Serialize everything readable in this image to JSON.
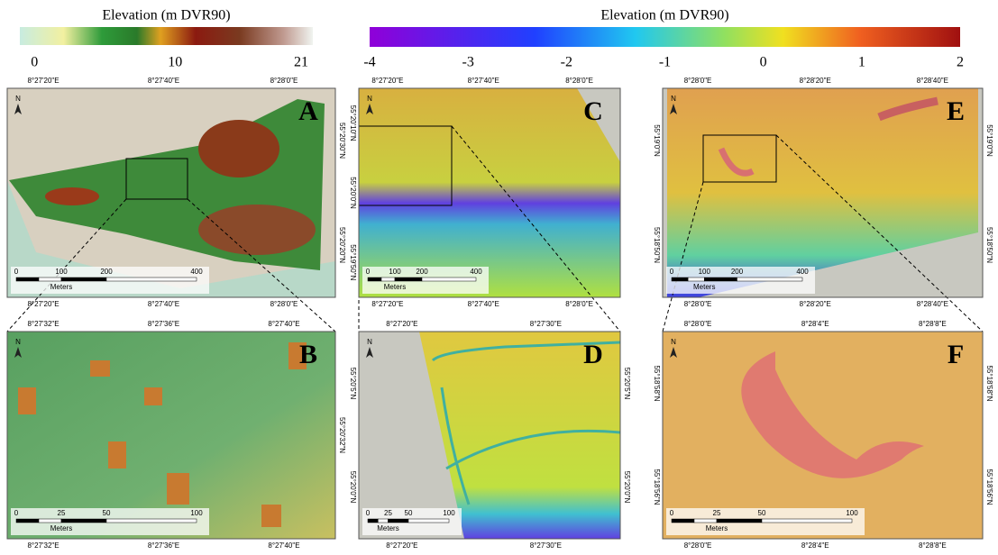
{
  "colorbars": [
    {
      "title": "Elevation (m DVR90)",
      "ticks": [
        "0",
        "10",
        "21"
      ]
    },
    {
      "title": "Elevation (m DVR90)",
      "ticks": [
        "-4",
        "-3",
        "-2",
        "-1",
        "0",
        "1",
        "2"
      ]
    }
  ],
  "panels": [
    {
      "letter": "A",
      "north": "N",
      "top_labels": [
        "8°27'20\"E",
        "8°27'40\"E",
        "8°28'0\"E"
      ],
      "bottom_labels": [
        "8°27'20\"E",
        "8°27'40\"E",
        "8°28'0\"E"
      ],
      "left_labels": [],
      "right_labels": [
        "55°20'30\"N",
        "55°20'20\"N"
      ],
      "scale_labels": [
        "0",
        "100",
        "200",
        "400"
      ],
      "scale_unit": "Meters"
    },
    {
      "letter": "B",
      "north": "N",
      "top_labels": [
        "8°27'32\"E",
        "8°27'36\"E",
        "8°27'40\"E"
      ],
      "bottom_labels": [
        "8°27'32\"E",
        "8°27'36\"E",
        "8°27'40\"E"
      ],
      "left_labels": [],
      "right_labels": [
        "55°20'32\"N"
      ],
      "scale_labels": [
        "0",
        "25",
        "50",
        "100"
      ],
      "scale_unit": "Meters"
    },
    {
      "letter": "C",
      "north": "N",
      "top_labels": [
        "8°27'20\"E",
        "8°27'40\"E",
        "8°28'0\"E"
      ],
      "bottom_labels": [
        "8°27'20\"E",
        "8°27'40\"E",
        "8°28'0\"E"
      ],
      "left_labels": [
        "55°20'10\"N",
        "55°20'0\"N",
        "55°19'50\"N"
      ],
      "right_labels": [],
      "scale_labels": [
        "0",
        "100",
        "200",
        "400"
      ],
      "scale_unit": "Meters"
    },
    {
      "letter": "D",
      "north": "N",
      "top_labels": [
        "8°27'20\"E",
        "8°27'30\"E"
      ],
      "bottom_labels": [
        "8°27'20\"E",
        "8°27'30\"E"
      ],
      "left_labels": [
        "55°20'5\"N",
        "55°20'0\"N"
      ],
      "right_labels": [
        "55°20'5\"N",
        "55°20'0\"N"
      ],
      "scale_labels": [
        "0",
        "25",
        "50",
        "100"
      ],
      "scale_unit": "Meters"
    },
    {
      "letter": "E",
      "north": "N",
      "top_labels": [
        "8°28'0\"E",
        "8°28'20\"E",
        "8°28'40\"E"
      ],
      "bottom_labels": [
        "8°28'0\"E",
        "8°28'20\"E",
        "8°28'40\"E"
      ],
      "left_labels": [
        "55°19'0\"N",
        "55°18'50\"N"
      ],
      "right_labels": [
        "55°19'0\"N",
        "55°18'50\"N"
      ],
      "scale_labels": [
        "0",
        "100",
        "200",
        "400"
      ],
      "scale_unit": "Meters"
    },
    {
      "letter": "F",
      "north": "N",
      "top_labels": [
        "8°28'0\"E",
        "8°28'4\"E",
        "8°28'8\"E"
      ],
      "bottom_labels": [
        "8°28'0\"E",
        "8°28'4\"E",
        "8°28'8\"E"
      ],
      "left_labels": [
        "55°18'58\"N",
        "55°18'56\"N"
      ],
      "right_labels": [
        "55°18'58\"N",
        "55°18'56\"N"
      ],
      "scale_labels": [
        "0",
        "25",
        "50",
        "100"
      ],
      "scale_unit": "Meters"
    }
  ]
}
